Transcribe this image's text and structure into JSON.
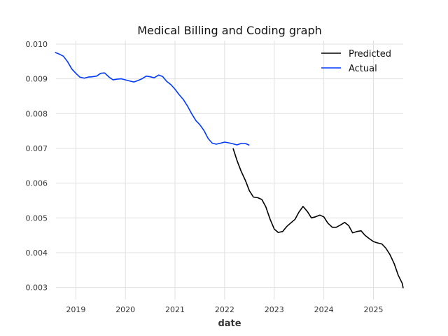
{
  "chart_data": {
    "type": "line",
    "title": "Medical Billing and Coding graph",
    "xlabel": "date",
    "ylabel": "",
    "xlim": [
      2018.6,
      2025.6
    ],
    "ylim": [
      0.00265,
      0.0101
    ],
    "x_ticks": [
      2019,
      2020,
      2021,
      2022,
      2023,
      2024,
      2025
    ],
    "x_tick_labels": [
      "2019",
      "2020",
      "2021",
      "2022",
      "2023",
      "2024",
      "2025"
    ],
    "y_ticks": [
      0.003,
      0.004,
      0.005,
      0.006,
      0.007,
      0.008,
      0.009,
      0.01
    ],
    "y_tick_labels": [
      "0.003",
      "0.004",
      "0.005",
      "0.006",
      "0.007",
      "0.008",
      "0.009",
      "0.010"
    ],
    "grid": true,
    "legend_position": "top-right",
    "series": [
      {
        "name": "Predicted",
        "color": "#000000",
        "points": [
          [
            2022.17,
            0.007
          ],
          [
            2022.25,
            0.00665
          ],
          [
            2022.33,
            0.00635
          ],
          [
            2022.42,
            0.00607
          ],
          [
            2022.5,
            0.00578
          ],
          [
            2022.58,
            0.0056
          ],
          [
            2022.67,
            0.00558
          ],
          [
            2022.75,
            0.00553
          ],
          [
            2022.83,
            0.00532
          ],
          [
            2022.92,
            0.00495
          ],
          [
            2023.0,
            0.00468
          ],
          [
            2023.08,
            0.00458
          ],
          [
            2023.17,
            0.00461
          ],
          [
            2023.25,
            0.00475
          ],
          [
            2023.33,
            0.00485
          ],
          [
            2023.42,
            0.00496
          ],
          [
            2023.5,
            0.00517
          ],
          [
            2023.58,
            0.00533
          ],
          [
            2023.67,
            0.00518
          ],
          [
            2023.75,
            0.005
          ],
          [
            2023.83,
            0.00503
          ],
          [
            2023.92,
            0.00508
          ],
          [
            2024.0,
            0.00503
          ],
          [
            2024.08,
            0.00485
          ],
          [
            2024.17,
            0.00473
          ],
          [
            2024.25,
            0.00473
          ],
          [
            2024.33,
            0.00479
          ],
          [
            2024.42,
            0.00487
          ],
          [
            2024.5,
            0.00478
          ],
          [
            2024.58,
            0.00457
          ],
          [
            2024.67,
            0.00461
          ],
          [
            2024.75,
            0.00463
          ],
          [
            2024.83,
            0.0045
          ],
          [
            2024.92,
            0.0044
          ],
          [
            2025.0,
            0.00432
          ],
          [
            2025.08,
            0.00428
          ],
          [
            2025.17,
            0.00425
          ],
          [
            2025.25,
            0.00413
          ],
          [
            2025.33,
            0.00395
          ],
          [
            2025.42,
            0.00368
          ],
          [
            2025.5,
            0.00335
          ],
          [
            2025.58,
            0.00312
          ],
          [
            2025.6,
            0.00298
          ]
        ]
      },
      {
        "name": "Actual",
        "color": "#0039ff",
        "points": [
          [
            2018.58,
            0.00976
          ],
          [
            2018.67,
            0.00971
          ],
          [
            2018.75,
            0.00965
          ],
          [
            2018.83,
            0.0095
          ],
          [
            2018.92,
            0.00928
          ],
          [
            2019.0,
            0.00916
          ],
          [
            2019.08,
            0.00905
          ],
          [
            2019.17,
            0.00902
          ],
          [
            2019.25,
            0.00905
          ],
          [
            2019.33,
            0.00906
          ],
          [
            2019.42,
            0.00908
          ],
          [
            2019.5,
            0.00916
          ],
          [
            2019.58,
            0.00917
          ],
          [
            2019.67,
            0.00905
          ],
          [
            2019.75,
            0.00897
          ],
          [
            2019.83,
            0.00899
          ],
          [
            2019.92,
            0.009
          ],
          [
            2020.0,
            0.00897
          ],
          [
            2020.08,
            0.00894
          ],
          [
            2020.17,
            0.00891
          ],
          [
            2020.25,
            0.00895
          ],
          [
            2020.33,
            0.009
          ],
          [
            2020.42,
            0.00908
          ],
          [
            2020.5,
            0.00906
          ],
          [
            2020.58,
            0.00903
          ],
          [
            2020.67,
            0.00911
          ],
          [
            2020.75,
            0.00907
          ],
          [
            2020.83,
            0.00893
          ],
          [
            2020.92,
            0.00883
          ],
          [
            2021.0,
            0.0087
          ],
          [
            2021.08,
            0.00855
          ],
          [
            2021.17,
            0.0084
          ],
          [
            2021.25,
            0.00822
          ],
          [
            2021.33,
            0.00801
          ],
          [
            2021.42,
            0.0078
          ],
          [
            2021.5,
            0.00768
          ],
          [
            2021.58,
            0.00752
          ],
          [
            2021.67,
            0.00728
          ],
          [
            2021.75,
            0.00715
          ],
          [
            2021.83,
            0.00712
          ],
          [
            2021.92,
            0.00715
          ],
          [
            2022.0,
            0.00718
          ],
          [
            2022.08,
            0.00716
          ],
          [
            2022.17,
            0.00713
          ],
          [
            2022.25,
            0.0071
          ],
          [
            2022.33,
            0.00714
          ],
          [
            2022.42,
            0.00714
          ],
          [
            2022.5,
            0.00709
          ]
        ]
      }
    ]
  }
}
